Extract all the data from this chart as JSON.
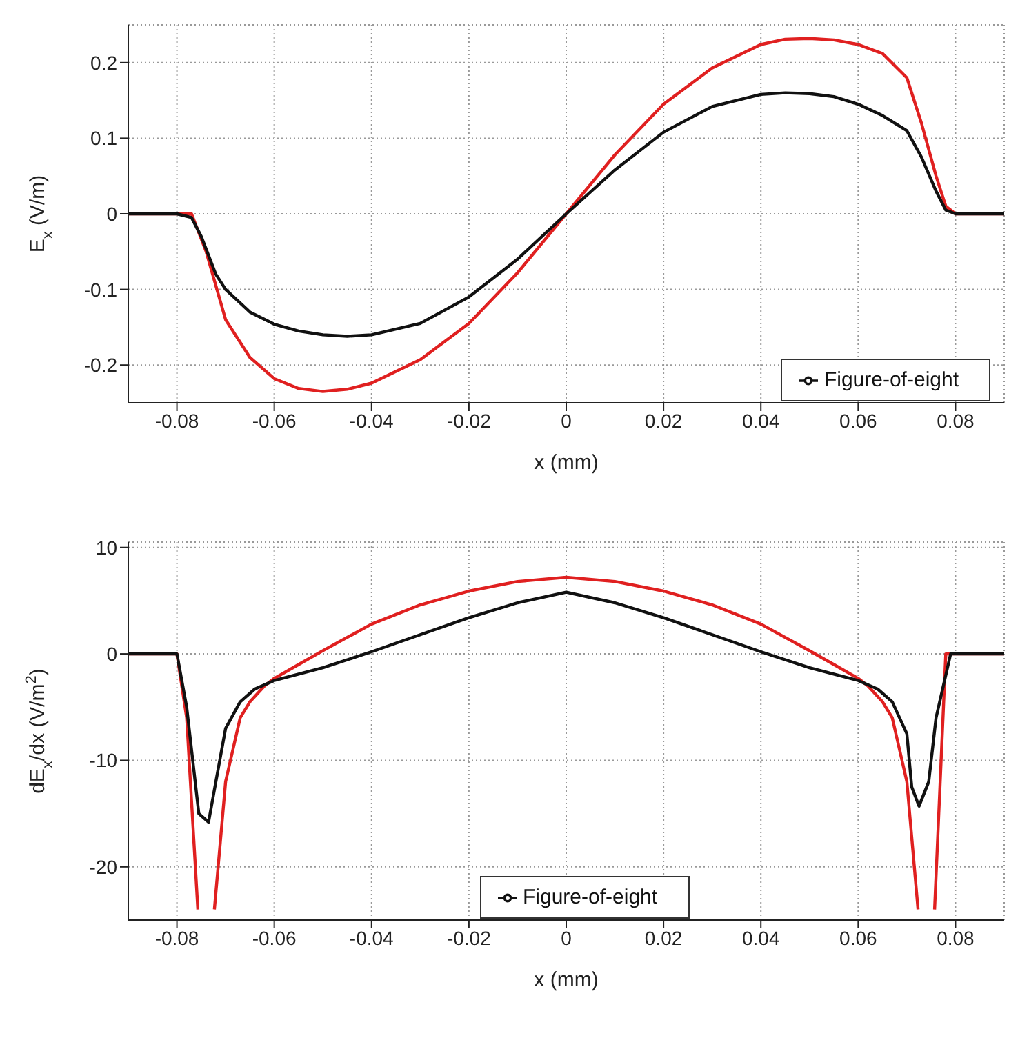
{
  "chart_data": [
    {
      "type": "line",
      "xlabel": "x (mm)",
      "ylabel": "E$_{x}$ (V/m)",
      "xlim": [
        -0.09,
        0.09
      ],
      "xticks": [
        -0.08,
        -0.06,
        -0.04,
        -0.02,
        0,
        0.02,
        0.04,
        0.06,
        0.08
      ],
      "ylim": [
        -0.25,
        0.25
      ],
      "yticks": [
        -0.2,
        -0.1,
        0,
        0.1,
        0.2
      ],
      "grid": true,
      "legend": "bottom right",
      "line_style": "solid",
      "marker": "none",
      "series": [
        {
          "color": "#e02020",
          "x": [
            -0.09,
            -0.08,
            -0.077,
            -0.074,
            -0.07,
            -0.065,
            -0.06,
            -0.055,
            -0.05,
            -0.045,
            -0.04,
            -0.03,
            -0.02,
            -0.01,
            0,
            0.01,
            0.02,
            0.03,
            0.04,
            0.045,
            0.05,
            0.055,
            0.06,
            0.065,
            0.07,
            0.073,
            0.076,
            0.078,
            0.08,
            0.09
          ],
          "values": [
            0,
            0,
            0,
            -0.05,
            -0.14,
            -0.19,
            -0.218,
            -0.231,
            -0.235,
            -0.232,
            -0.224,
            -0.193,
            -0.145,
            -0.078,
            0,
            0.078,
            0.145,
            0.193,
            0.224,
            0.231,
            0.232,
            0.23,
            0.224,
            0.212,
            0.18,
            0.12,
            0.05,
            0.01,
            0,
            0
          ]
        },
        {
          "name": "Figure-of-eight",
          "color": "#111111",
          "x": [
            -0.09,
            -0.08,
            -0.077,
            -0.075,
            -0.072,
            -0.07,
            -0.065,
            -0.06,
            -0.055,
            -0.05,
            -0.045,
            -0.04,
            -0.03,
            -0.02,
            -0.01,
            0,
            0.01,
            0.02,
            0.03,
            0.04,
            0.045,
            0.05,
            0.055,
            0.06,
            0.065,
            0.07,
            0.073,
            0.076,
            0.078,
            0.08,
            0.09
          ],
          "values": [
            0,
            0,
            -0.005,
            -0.03,
            -0.08,
            -0.1,
            -0.13,
            -0.146,
            -0.155,
            -0.16,
            -0.162,
            -0.16,
            -0.145,
            -0.11,
            -0.06,
            0,
            0.058,
            0.108,
            0.142,
            0.158,
            0.16,
            0.159,
            0.155,
            0.145,
            0.13,
            0.11,
            0.075,
            0.03,
            0.005,
            0,
            0
          ]
        }
      ]
    },
    {
      "type": "line",
      "xlabel": "x (mm)",
      "ylabel": "dE$_{x}$/dx (V/m$^{2}$)",
      "xlim": [
        -0.09,
        0.09
      ],
      "xticks": [
        -0.08,
        -0.06,
        -0.04,
        -0.02,
        0,
        0.02,
        0.04,
        0.06,
        0.08
      ],
      "ylim": [
        -25,
        10.5
      ],
      "yticks": [
        -20,
        -10,
        0,
        10
      ],
      "grid": true,
      "legend": "bottom",
      "line_style": "solid",
      "marker": "none",
      "series": [
        {
          "color": "#e02020",
          "x": [
            -0.09,
            -0.08,
            -0.078,
            -0.0757,
            -0.074,
            -0.0723,
            -0.07,
            -0.067,
            -0.065,
            -0.062,
            -0.06,
            -0.055,
            -0.05,
            -0.04,
            -0.03,
            -0.02,
            -0.01,
            0,
            0.01,
            0.02,
            0.03,
            0.04,
            0.05,
            0.055,
            0.06,
            0.062,
            0.065,
            0.067,
            0.07,
            0.0723,
            0.074,
            0.0757,
            0.078,
            0.08,
            0.09
          ],
          "values": [
            0,
            0,
            -6,
            -24,
            null,
            -24,
            -12,
            -6,
            -4.5,
            -3,
            -2.3,
            -1,
            0.3,
            2.8,
            4.6,
            5.9,
            6.8,
            7.2,
            6.8,
            5.9,
            4.6,
            2.8,
            0.3,
            -1,
            -2.3,
            -3,
            -4.5,
            -6,
            -12,
            -24,
            null,
            -24,
            0,
            0,
            0
          ]
        },
        {
          "name": "Figure-of-eight",
          "color": "#111111",
          "x": [
            -0.09,
            -0.08,
            -0.078,
            -0.0755,
            -0.0735,
            -0.072,
            -0.07,
            -0.067,
            -0.064,
            -0.06,
            -0.055,
            -0.05,
            -0.04,
            -0.03,
            -0.02,
            -0.01,
            0,
            0.01,
            0.02,
            0.03,
            0.04,
            0.05,
            0.055,
            0.06,
            0.064,
            0.067,
            0.07,
            0.071,
            0.0725,
            0.0745,
            0.076,
            0.079,
            0.08,
            0.09
          ],
          "values": [
            0,
            0,
            -5,
            -15,
            -15.8,
            -12,
            -7,
            -4.5,
            -3.3,
            -2.5,
            -1.9,
            -1.3,
            0.2,
            1.8,
            3.4,
            4.8,
            5.8,
            4.8,
            3.4,
            1.8,
            0.2,
            -1.3,
            -1.9,
            -2.5,
            -3.3,
            -4.5,
            -7.5,
            -12.5,
            -14.3,
            -12,
            -6,
            0,
            0,
            0
          ]
        }
      ]
    }
  ]
}
